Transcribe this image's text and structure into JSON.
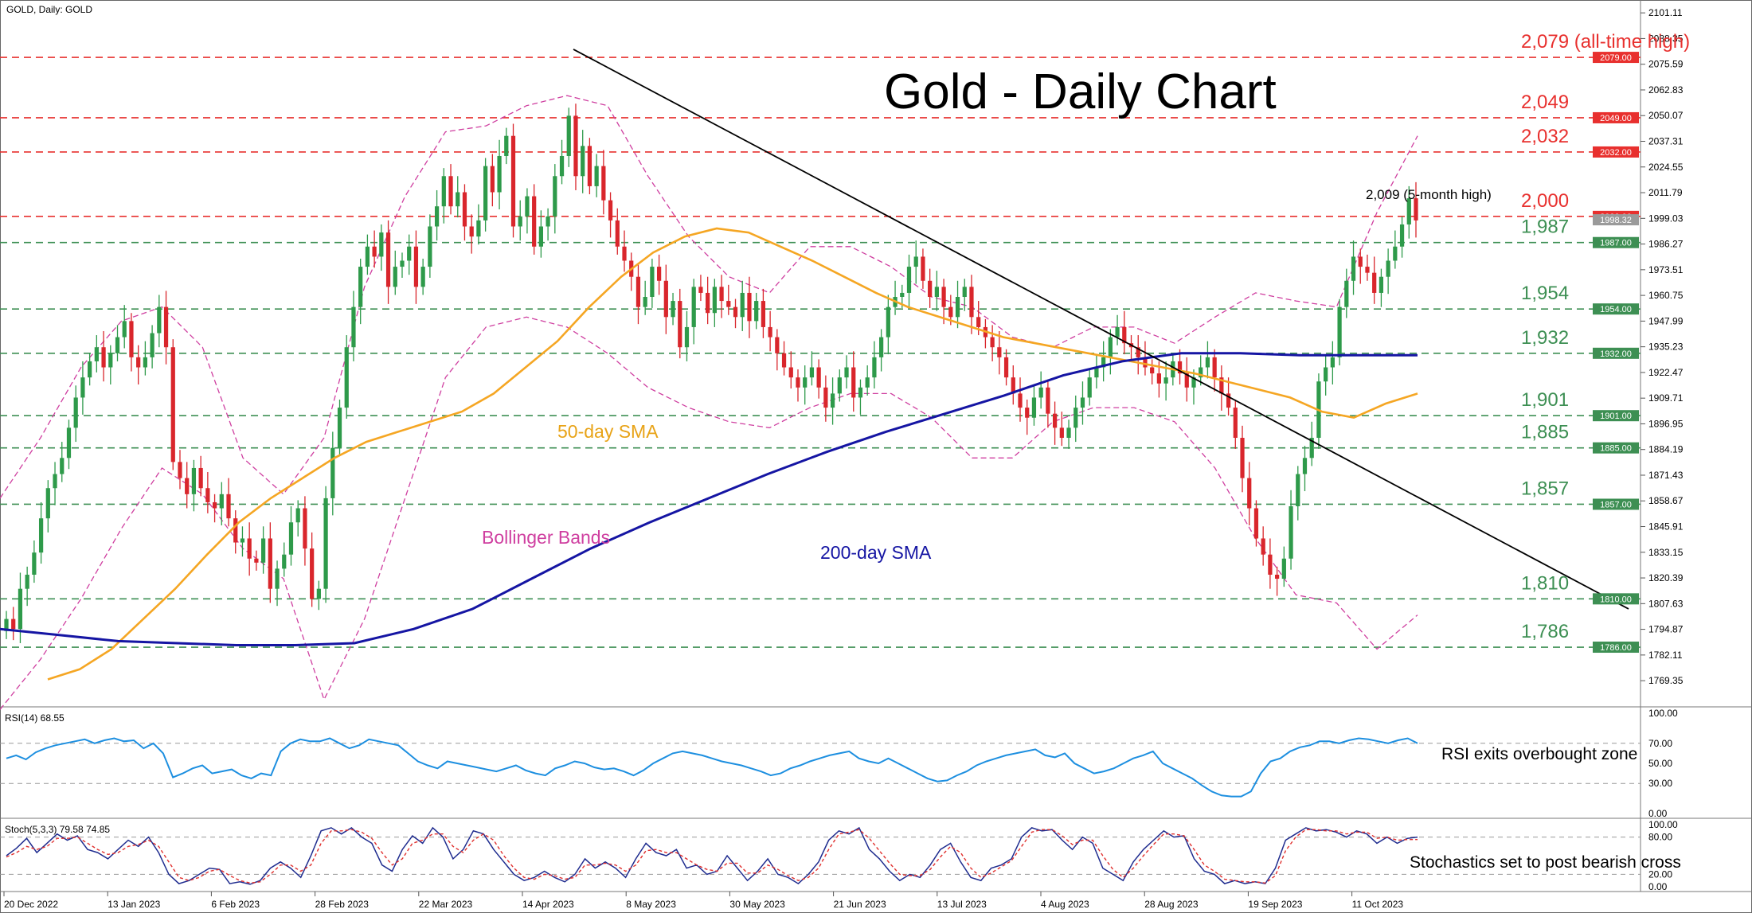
{
  "header": {
    "symbol_label": "GOLD, Daily:  GOLD"
  },
  "main_title": "Gold - Daily Chart",
  "colors": {
    "up_candle": "#2e9a4a",
    "down_candle": "#d9262c",
    "sma50": "#f5a623",
    "sma200": "#1515a3",
    "bollinger": "#cf3fa0",
    "trendline": "#000000",
    "resistance": "#e8302e",
    "support": "#3d8f53",
    "rsi_line": "#1d8fe0",
    "stoch_main": "#1f2c8f",
    "stoch_signal": "#e0302e"
  },
  "annotations": {
    "sma50_label": "50-day SMA",
    "sma200_label": "200-day SMA",
    "bollinger_label": "Bollinger Bands",
    "peak_label": "2,009 (5-month high)",
    "rsi_note": "RSI exits overbought zone",
    "stoch_note": "Stochastics set to post bearish cross"
  },
  "chart_data": [
    {
      "type": "candlestick",
      "title": "Gold - Daily Chart",
      "ylim": [
        1756.35,
        2107.5
      ],
      "price_axis_ticks": [
        "2101.11",
        "2088.35",
        "2075.59",
        "2062.83",
        "2050.07",
        "2037.31",
        "2024.55",
        "2011.79",
        "1999.03",
        "1986.27",
        "1973.51",
        "1960.75",
        "1947.99",
        "1935.23",
        "1922.47",
        "1909.71",
        "1896.95",
        "1884.19",
        "1871.43",
        "1858.67",
        "1845.91",
        "1833.15",
        "1820.39",
        "1807.63",
        "1794.87",
        "1782.11",
        "1769.35"
      ],
      "date_axis_labels": [
        "20 Dec 2022",
        "13 Jan 2023",
        "6 Feb 2023",
        "28 Feb 2023",
        "22 Mar 2023",
        "14 Apr 2023",
        "8 May 2023",
        "30 May 2023",
        "21 Jun 2023",
        "13 Jul 2023",
        "4 Aug 2023",
        "28 Aug 2023",
        "19 Sep 2023",
        "11 Oct 2023"
      ],
      "last_price": "1998.32",
      "horizontal_levels": [
        {
          "value": 2079,
          "label": "2,079 (all-time high)",
          "tag": "2079.00",
          "kind": "resistance"
        },
        {
          "value": 2049,
          "label": "2,049",
          "tag": "2049.00",
          "kind": "resistance"
        },
        {
          "value": 2032,
          "label": "2,032",
          "tag": "2032.00",
          "kind": "resistance"
        },
        {
          "value": 2000,
          "label": "2,000",
          "tag": "2000.00",
          "kind": "resistance"
        },
        {
          "value": 1987,
          "label": "1,987",
          "tag": "1987.00",
          "kind": "support"
        },
        {
          "value": 1954,
          "label": "1,954",
          "tag": "1954.00",
          "kind": "support"
        },
        {
          "value": 1932,
          "label": "1,932",
          "tag": "1932.00",
          "kind": "support"
        },
        {
          "value": 1901,
          "label": "1,901",
          "tag": "1901.00",
          "kind": "support"
        },
        {
          "value": 1885,
          "label": "1,885",
          "tag": "1885.00",
          "kind": "support"
        },
        {
          "value": 1857,
          "label": "1,857",
          "tag": "1857.00",
          "kind": "support"
        },
        {
          "value": 1810,
          "label": "1,810",
          "tag": "1810.00",
          "kind": "support"
        },
        {
          "value": 1786,
          "label": "1,786",
          "tag": "1786.00",
          "kind": "support"
        }
      ],
      "close_series": [
        1800,
        1795,
        1815,
        1822,
        1833,
        1850,
        1865,
        1872,
        1880,
        1895,
        1910,
        1920,
        1928,
        1935,
        1925,
        1932,
        1940,
        1948,
        1930,
        1925,
        1930,
        1942,
        1955,
        1935,
        1878,
        1870,
        1862,
        1875,
        1865,
        1858,
        1855,
        1862,
        1850,
        1838,
        1840,
        1830,
        1828,
        1840,
        1815,
        1825,
        1832,
        1848,
        1855,
        1835,
        1810,
        1815,
        1860,
        1885,
        1905,
        1935,
        1955,
        1975,
        1985,
        1980,
        1992,
        1965,
        1975,
        1978,
        1985,
        1965,
        1975,
        1995,
        2005,
        2020,
        2005,
        2012,
        1995,
        1990,
        1998,
        2025,
        2012,
        2030,
        2040,
        1995,
        2000,
        2010,
        1985,
        1995,
        2000,
        2020,
        2030,
        2050,
        2020,
        2035,
        2015,
        2025,
        2008,
        1998,
        1985,
        1978,
        1970,
        1955,
        1960,
        1975,
        1968,
        1950,
        1958,
        1935,
        1945,
        1965,
        1962,
        1952,
        1965,
        1958,
        1955,
        1950,
        1962,
        1948,
        1958,
        1945,
        1940,
        1932,
        1925,
        1920,
        1915,
        1920,
        1925,
        1915,
        1905,
        1912,
        1920,
        1925,
        1910,
        1915,
        1920,
        1930,
        1940,
        1955,
        1960,
        1962,
        1975,
        1980,
        1968,
        1960,
        1965,
        1955,
        1950,
        1960,
        1965,
        1950,
        1945,
        1940,
        1935,
        1930,
        1920,
        1912,
        1905,
        1900,
        1910,
        1915,
        1902,
        1895,
        1890,
        1895,
        1905,
        1910,
        1920,
        1925,
        1930,
        1940,
        1945,
        1937,
        1935,
        1930,
        1925,
        1922,
        1917,
        1920,
        1928,
        1922,
        1915,
        1920,
        1925,
        1930,
        1920,
        1912,
        1905,
        1890,
        1870,
        1855,
        1840,
        1832,
        1822,
        1820,
        1830,
        1856,
        1872,
        1880,
        1890,
        1918,
        1925,
        1930,
        1955,
        1968,
        1980,
        1975,
        1972,
        1962,
        1970,
        1978,
        1985,
        1996,
        2009,
        1998
      ],
      "sma50": [
        1770,
        1775,
        1785,
        1800,
        1815,
        1832,
        1848,
        1860,
        1870,
        1880,
        1888,
        1893,
        1898,
        1903,
        1912,
        1925,
        1938,
        1955,
        1970,
        1982,
        1990,
        1994,
        1992,
        1985,
        1978,
        1970,
        1962,
        1955,
        1950,
        1945,
        1940,
        1937,
        1934,
        1931,
        1928,
        1925,
        1922,
        1918,
        1914,
        1910,
        1903,
        1900,
        1907,
        1912
      ],
      "sma200": [
        1795,
        1792,
        1789,
        1788,
        1787,
        1787,
        1788,
        1795,
        1805,
        1820,
        1835,
        1848,
        1860,
        1872,
        1883,
        1893,
        1902,
        1911,
        1921,
        1928,
        1932,
        1932,
        1931,
        1931,
        1931
      ],
      "bollinger_upper": [
        1860,
        1890,
        1925,
        1948,
        1955,
        1935,
        1880,
        1862,
        1890,
        1965,
        2010,
        2042,
        2045,
        2055,
        2060,
        2055,
        2020,
        1990,
        1970,
        1962,
        1985,
        1985,
        1975,
        1960,
        1955,
        1940,
        1935,
        1945,
        1945,
        1937,
        1950,
        1962,
        1958,
        1955,
        2002,
        2040
      ],
      "bollinger_lower": [
        1755,
        1780,
        1810,
        1845,
        1875,
        1862,
        1835,
        1820,
        1760,
        1800,
        1860,
        1920,
        1945,
        1950,
        1945,
        1932,
        1915,
        1905,
        1898,
        1895,
        1905,
        1912,
        1912,
        1900,
        1880,
        1880,
        1898,
        1905,
        1905,
        1898,
        1875,
        1840,
        1812,
        1808,
        1785,
        1802
      ],
      "trendline": [
        [
          2080,
          2083
        ],
        [
          1825,
          1805
        ]
      ]
    },
    {
      "type": "line",
      "title": "RSI(14) 68.55",
      "ylim": [
        0,
        100
      ],
      "tick_labels": [
        "100.00",
        "70.00",
        "50.00",
        "30.00",
        "0.00"
      ],
      "reference_levels": [
        70,
        30
      ],
      "values": [
        55,
        58,
        54,
        61,
        65,
        68,
        70,
        72,
        74,
        70,
        73,
        75,
        72,
        73,
        65,
        70,
        60,
        36,
        40,
        45,
        48,
        40,
        42,
        44,
        38,
        35,
        40,
        38,
        62,
        70,
        74,
        72,
        72,
        75,
        70,
        65,
        68,
        74,
        72,
        70,
        68,
        60,
        52,
        48,
        45,
        52,
        50,
        48,
        46,
        44,
        42,
        45,
        48,
        43,
        40,
        38,
        45,
        48,
        52,
        50,
        46,
        44,
        45,
        42,
        38,
        43,
        50,
        55,
        60,
        62,
        60,
        58,
        55,
        52,
        50,
        48,
        45,
        42,
        38,
        40,
        45,
        48,
        52,
        55,
        58,
        60,
        62,
        55,
        52,
        50,
        55,
        50,
        45,
        40,
        35,
        32,
        33,
        38,
        42,
        48,
        52,
        55,
        58,
        60,
        62,
        64,
        58,
        56,
        60,
        50,
        45,
        40,
        42,
        45,
        50,
        55,
        58,
        62,
        50,
        45,
        40,
        35,
        28,
        22,
        18,
        17,
        17,
        22,
        40,
        52,
        55,
        62,
        66,
        68,
        72,
        72,
        70,
        73,
        75,
        74,
        72,
        70,
        73,
        75,
        70
      ]
    },
    {
      "type": "line",
      "title": "Stoch(5,3,3) 79.58 74.85",
      "ylim": [
        0,
        100
      ],
      "tick_labels": [
        "100.00",
        "80.00",
        "20.00",
        "0.00"
      ],
      "reference_levels": [
        80,
        20
      ],
      "series": [
        {
          "name": "main",
          "values": [
            50,
            62,
            78,
            55,
            70,
            85,
            75,
            82,
            60,
            55,
            45,
            60,
            75,
            65,
            80,
            55,
            20,
            5,
            10,
            20,
            30,
            28,
            5,
            8,
            4,
            10,
            30,
            40,
            30,
            15,
            50,
            90,
            95,
            85,
            95,
            80,
            70,
            35,
            25,
            60,
            82,
            70,
            95,
            80,
            45,
            60,
            90,
            85,
            60,
            40,
            20,
            10,
            15,
            25,
            15,
            8,
            20,
            45,
            30,
            40,
            30,
            15,
            45,
            70,
            55,
            50,
            60,
            30,
            35,
            20,
            25,
            50,
            30,
            10,
            25,
            45,
            20,
            15,
            5,
            20,
            40,
            75,
            90,
            85,
            95,
            60,
            45,
            25,
            10,
            20,
            15,
            35,
            60,
            70,
            40,
            15,
            10,
            30,
            35,
            45,
            80,
            95,
            90,
            92,
            75,
            60,
            80,
            70,
            30,
            20,
            10,
            40,
            60,
            75,
            90,
            80,
            82,
            45,
            25,
            20,
            5,
            10,
            5,
            8,
            5,
            30,
            75,
            85,
            95,
            90,
            92,
            88,
            80,
            90,
            85,
            70,
            80,
            70,
            78,
            80
          ]
        },
        {
          "name": "signal",
          "values": [
            48,
            55,
            65,
            60,
            65,
            78,
            78,
            80,
            70,
            60,
            52,
            55,
            65,
            68,
            75,
            65,
            40,
            15,
            10,
            15,
            25,
            28,
            18,
            10,
            6,
            8,
            20,
            35,
            35,
            25,
            35,
            70,
            90,
            90,
            92,
            88,
            78,
            55,
            35,
            45,
            70,
            75,
            85,
            85,
            65,
            55,
            75,
            85,
            75,
            50,
            30,
            15,
            12,
            20,
            18,
            12,
            15,
            35,
            35,
            38,
            35,
            25,
            35,
            58,
            60,
            55,
            55,
            45,
            35,
            28,
            25,
            38,
            38,
            22,
            22,
            35,
            28,
            18,
            10,
            15,
            30,
            60,
            85,
            88,
            92,
            78,
            58,
            38,
            20,
            18,
            18,
            28,
            48,
            65,
            55,
            30,
            15,
            22,
            32,
            42,
            65,
            88,
            92,
            92,
            82,
            68,
            75,
            75,
            50,
            28,
            15,
            30,
            50,
            68,
            85,
            85,
            82,
            60,
            35,
            25,
            12,
            10,
            8,
            8,
            6,
            18,
            58,
            80,
            92,
            92,
            90,
            90,
            85,
            88,
            88,
            78,
            80,
            75,
            76,
            76
          ]
        }
      ]
    }
  ]
}
